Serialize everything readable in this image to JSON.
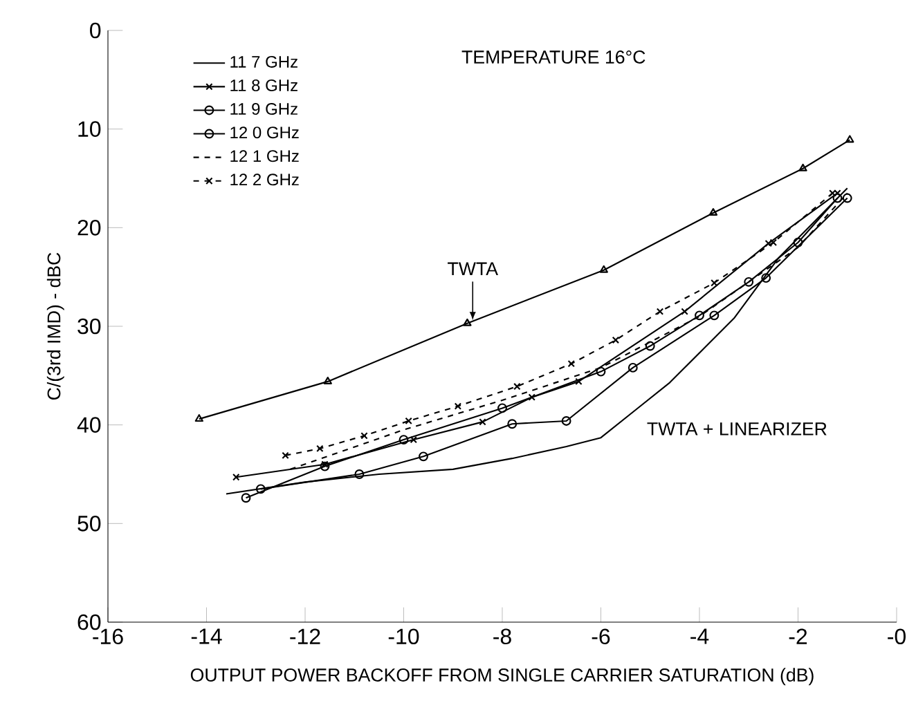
{
  "chart_data": {
    "type": "line",
    "xlabel": "OUTPUT POWER BACKOFF FROM SINGLE CARRIER SATURATION (dB)",
    "ylabel": "C/(3rd IMD) - dBC",
    "xlim": [
      -16,
      0
    ],
    "ylim": [
      60,
      0
    ],
    "xticks": [
      -16,
      -14,
      -12,
      -10,
      -8,
      -6,
      -4,
      -2,
      {
        "value": 0,
        "label": "-0"
      }
    ],
    "yticks": [
      0,
      10,
      20,
      30,
      40,
      50,
      60
    ],
    "grid": false,
    "legend": "top left",
    "annotations": [
      "TEMPERATURE 16°C",
      "TWTA + LINEARIZER",
      {
        "text": "TWTA",
        "x": -8.6,
        "y": 29.4
      }
    ],
    "series": [
      {
        "name": "11 7 GHz",
        "color": "#000000",
        "marker": "none",
        "line_style": "solid",
        "x": [
          -13.6,
          -12,
          -10.5,
          -9,
          -7.8,
          -6.7,
          -6.0,
          -5.3,
          -4.6,
          -3.3,
          -2.4,
          -1.0
        ],
        "values": [
          47.0,
          45.8,
          45.0,
          44.5,
          43.4,
          42.2,
          41.3,
          38.5,
          35.7,
          29.2,
          23.1,
          16.0
        ]
      },
      {
        "name": "11 8 GHz",
        "color": "#000000",
        "marker": "cross",
        "line_style": "solid",
        "x": [
          -13.4,
          -11.6,
          -9.8,
          -8.4,
          -7.4,
          -6.45,
          -4.3,
          -2.6,
          -1.2
        ],
        "values": [
          45.3,
          44.0,
          41.5,
          39.7,
          37.2,
          35.6,
          28.5,
          21.6,
          16.5
        ]
      },
      {
        "name": "11 9 GHz",
        "color": "#000000",
        "marker": "circle",
        "line_style": "solid",
        "x": [
          -12.9,
          -10.9,
          -9.6,
          -7.8,
          -6.7,
          -5.35,
          -3.7,
          -2.65,
          -1.0
        ],
        "values": [
          46.5,
          45.0,
          43.2,
          39.9,
          39.6,
          34.2,
          28.9,
          25.1,
          17.0
        ]
      },
      {
        "name": "12 0 GHz",
        "color": "#000000",
        "marker": "circle",
        "line_style": "solid",
        "x": [
          -13.2,
          -11.6,
          -10,
          -8,
          -6.0,
          -5,
          -4,
          -3,
          -2,
          -1.2
        ],
        "values": [
          47.4,
          44.2,
          41.5,
          38.3,
          34.6,
          32.0,
          28.9,
          25.5,
          21.5,
          17.0
        ]
      },
      {
        "name": "12 1 GHz",
        "color": "#000000",
        "marker": "none",
        "line_style": "dashed",
        "x": [
          -12.3,
          -10,
          -8,
          -6,
          -4,
          -2,
          -1.0
        ],
        "values": [
          44.5,
          40.5,
          37.5,
          34.2,
          29.0,
          22.0,
          16.5
        ]
      },
      {
        "name": "12 2 GHz",
        "color": "#000000",
        "marker": "cross",
        "line_style": "dashed",
        "x": [
          -12.4,
          -11.7,
          -10.8,
          -9.9,
          -8.9,
          -7.7,
          -6.6,
          -5.7,
          -4.8,
          -3.7,
          -2.5,
          -1.3
        ],
        "values": [
          43.1,
          42.4,
          41.1,
          39.6,
          38.1,
          36.1,
          33.8,
          31.4,
          28.5,
          25.6,
          21.5,
          16.5
        ]
      },
      {
        "color": "#000000",
        "marker": "triangle",
        "line_style": "solid",
        "x": [
          -14.15,
          -11.54,
          -8.71,
          -5.94,
          -3.72,
          -1.9,
          -0.95
        ],
        "values": [
          39.4,
          35.6,
          29.7,
          24.3,
          18.5,
          14.0,
          11.1
        ]
      }
    ]
  }
}
